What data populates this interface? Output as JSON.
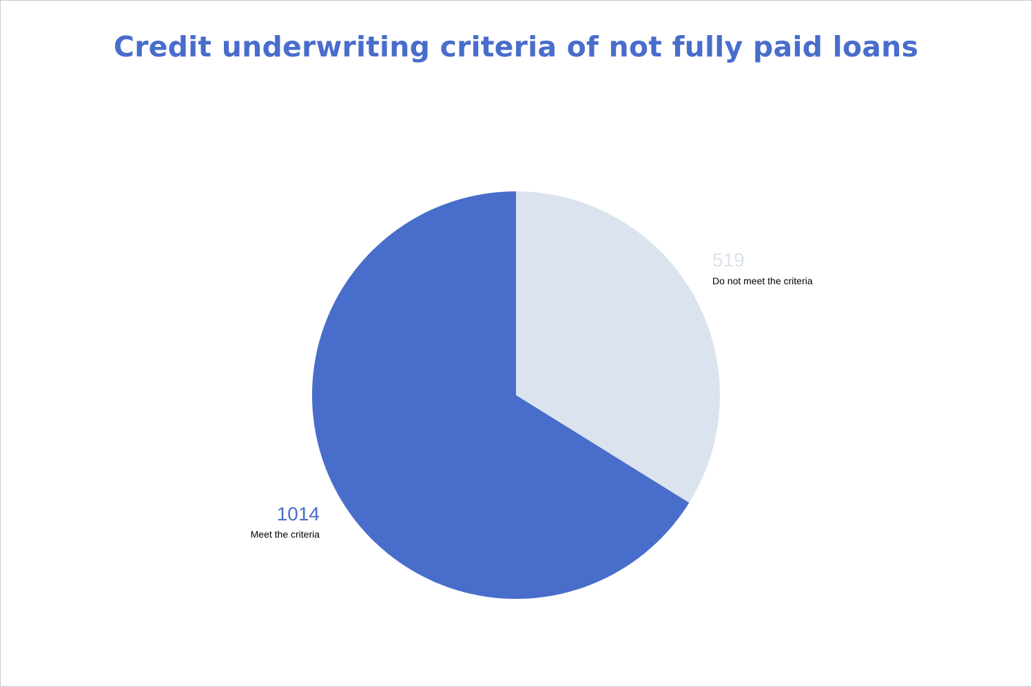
{
  "chart_data": {
    "type": "pie",
    "title": "Credit underwriting criteria of not fully paid loans",
    "slices": [
      {
        "label": "Do not meet the criteria",
        "value": 519,
        "value_label": "519",
        "color": "#dbe4ee"
      },
      {
        "label": "Meet the criteria",
        "value": 1014,
        "value_label": "1014",
        "color": "#496dcb"
      }
    ],
    "start_angle": "12 o'clock",
    "direction": "clockwise",
    "legend": "none",
    "title_color": "#496dcb"
  }
}
